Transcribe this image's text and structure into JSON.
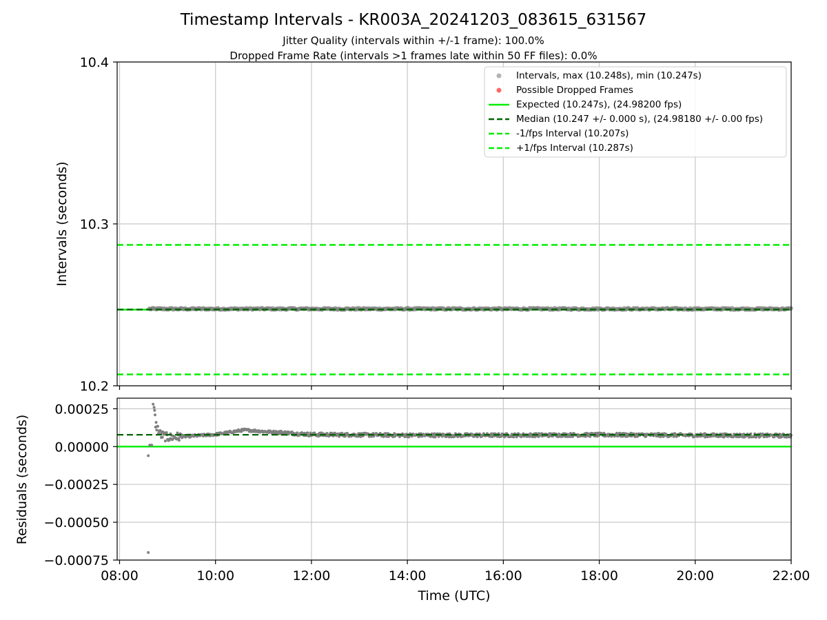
{
  "figure": {
    "title": "Timestamp Intervals - KR003A_20241203_083615_631567",
    "subtitle_lines": [
      "Jitter Quality (intervals within +/-1 frame): 100.0%",
      "Dropped Frame Rate (intervals >1 frames late within 50 FF files): 0.0%"
    ]
  },
  "colors": {
    "intervals": "#808080",
    "dropped": "#ff0000",
    "expected": "#00ee00",
    "median": "#006400",
    "bounds": "#00ee00",
    "grid": "#c8c8c8"
  },
  "chart_data": [
    {
      "type": "scatter",
      "panel": "intervals",
      "ylabel": "Intervals (seconds)",
      "xlabel": "",
      "x_unit": "hours UTC",
      "xlim": [
        7.95,
        22.0
      ],
      "ylim": [
        10.2,
        10.4
      ],
      "x_ticks": [
        8,
        10,
        12,
        14,
        16,
        18,
        20,
        22
      ],
      "y_ticks": [
        10.2,
        10.3,
        10.4
      ],
      "y_tick_labels": [
        "10.2",
        "10.3",
        "10.4"
      ],
      "grid": true,
      "legend_position": "top-right",
      "legend": [
        "Intervals, max (10.248s), min (10.247s)",
        "Possible Dropped Frames",
        "Expected (10.247s), (24.98200 fps)",
        "Median (10.247 +/- 0.000 s), (24.98180 +/- 0.00 fps)",
        "-1/fps Interval (10.207s)",
        "+1/fps Interval (10.287s)"
      ],
      "series": [
        {
          "name": "Intervals, max (10.248s), min (10.247s)",
          "kind": "points",
          "x_start": 8.62,
          "x_end": 22.0,
          "y_min": 10.247,
          "y_max": 10.248
        },
        {
          "name": "Possible Dropped Frames",
          "kind": "points",
          "values": []
        },
        {
          "name": "Expected (10.247s), (24.98200 fps)",
          "kind": "hline",
          "y": 10.247
        },
        {
          "name": "Median (10.247 +/- 0.000 s), (24.98180 +/- 0.00 fps)",
          "kind": "hline",
          "y": 10.2471
        },
        {
          "name": "-1/fps Interval (10.207s)",
          "kind": "hline",
          "y": 10.207
        },
        {
          "name": "+1/fps Interval (10.287s)",
          "kind": "hline",
          "y": 10.287
        }
      ]
    },
    {
      "type": "scatter",
      "panel": "residuals",
      "ylabel": "Residuals (seconds)",
      "xlabel": "Time (UTC)",
      "x_unit": "hours UTC",
      "xlim": [
        7.95,
        22.0
      ],
      "ylim": [
        -0.00075,
        0.00032
      ],
      "x_ticks": [
        8,
        10,
        12,
        14,
        16,
        18,
        20,
        22
      ],
      "x_tick_labels": [
        "08:00",
        "10:00",
        "12:00",
        "14:00",
        "16:00",
        "18:00",
        "20:00",
        "22:00"
      ],
      "y_ticks": [
        0.00025,
        0.0,
        -0.00025,
        -0.0005,
        -0.00075
      ],
      "y_tick_labels": [
        "0.00025",
        "0.00000",
        "−0.00025",
        "−0.00050",
        "−0.00075"
      ],
      "grid": true,
      "series": [
        {
          "name": "Residuals",
          "kind": "points",
          "outliers": [
            [
              8.6,
              -0.0007
            ],
            [
              8.6,
              -6e-05
            ],
            [
              8.63,
              1e-05
            ],
            [
              8.67,
              1e-05
            ],
            [
              8.7,
              0.00028
            ],
            [
              8.72,
              0.00026
            ],
            [
              8.73,
              0.00024
            ],
            [
              8.74,
              0.00021
            ]
          ],
          "trend": [
            [
              8.75,
              0.00015
            ],
            [
              8.85,
              8e-05
            ],
            [
              9.0,
              6e-05
            ],
            [
              9.5,
              7e-05
            ],
            [
              10.0,
              8e-05
            ],
            [
              10.6,
              0.00011
            ],
            [
              11.0,
              0.0001
            ],
            [
              12.0,
              8e-05
            ],
            [
              14.0,
              7.5e-05
            ],
            [
              16.0,
              7.5e-05
            ],
            [
              18.0,
              7.8e-05
            ],
            [
              20.0,
              7.5e-05
            ],
            [
              22.0,
              7.2e-05
            ]
          ]
        },
        {
          "name": "Expected",
          "kind": "hline",
          "y": 0.0
        },
        {
          "name": "Median",
          "kind": "hline",
          "y": 7.8e-05
        }
      ]
    }
  ]
}
